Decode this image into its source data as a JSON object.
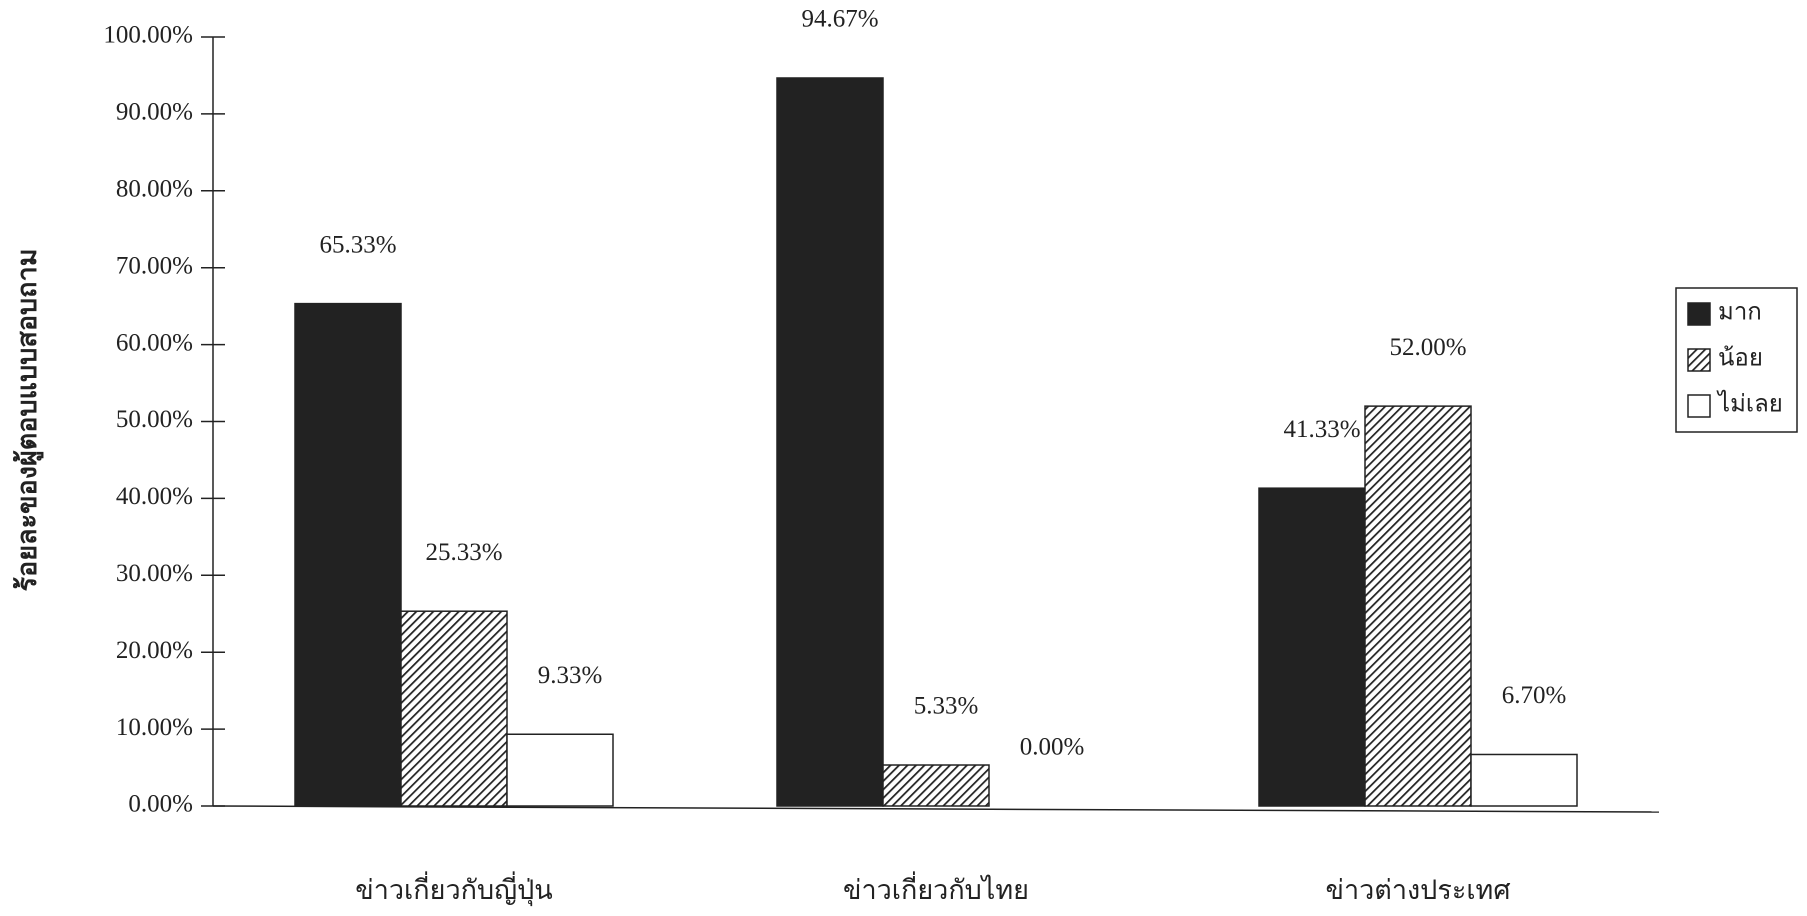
{
  "chart_data": {
    "type": "bar",
    "y_label": "ร้อยละของผู้ตอบแบบสอบถาม",
    "categories": [
      "ข่าวเกี่ยวกับญี่ปุ่น",
      "ข่าวเกี่ยวกับไทย",
      "ข่าวต่างประเทศ"
    ],
    "series": [
      {
        "name": "มาก",
        "color": "#222222",
        "values": [
          65.33,
          94.67,
          41.33
        ],
        "value_labels": [
          "65.33%",
          "94.67%",
          "41.33%"
        ]
      },
      {
        "name": "น้อย",
        "color": "#555555",
        "pattern": "hatch",
        "values": [
          25.33,
          5.33,
          52.0
        ],
        "value_labels": [
          "25.33%",
          "5.33%",
          "52.00%"
        ]
      },
      {
        "name": "ไม่เลย",
        "color": "#ffffff",
        "values": [
          9.33,
          0.0,
          6.7
        ],
        "value_labels": [
          "9.33%",
          "0.00%",
          "6.70%"
        ]
      }
    ],
    "ylim": [
      0,
      100
    ],
    "yticks": [
      {
        "value": 0,
        "label": "0.00%"
      },
      {
        "value": 10,
        "label": "10.00%"
      },
      {
        "value": 20,
        "label": "20.00%"
      },
      {
        "value": 30,
        "label": "30.00%"
      },
      {
        "value": 40,
        "label": "40.00%"
      },
      {
        "value": 50,
        "label": "50.00%"
      },
      {
        "value": 60,
        "label": "60.00%"
      },
      {
        "value": 70,
        "label": "70.00%"
      },
      {
        "value": 80,
        "label": "80.00%"
      },
      {
        "value": 90,
        "label": "90.00%"
      },
      {
        "value": 100,
        "label": "100.00%"
      }
    ],
    "grid": false,
    "legend": "right"
  }
}
